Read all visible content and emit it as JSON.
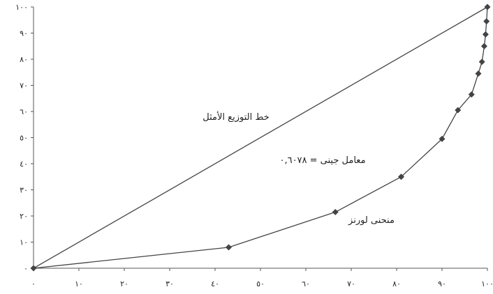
{
  "chart_data": {
    "type": "line",
    "x_ticks": [
      "٠",
      "١٠",
      "٢٠",
      "٣٠",
      "٤٠",
      "٥٠",
      "٦٠",
      "٧٠",
      "٨٠",
      "٩٠",
      "١٠٠"
    ],
    "y_ticks": [
      "٠",
      "١٠",
      "٢٠",
      "٣٠",
      "٤٠",
      "٥٠",
      "٦٠",
      "٧٠",
      "٨٠",
      "٩٠",
      "١٠٠"
    ],
    "xlim": [
      0,
      100
    ],
    "ylim": [
      0,
      100
    ],
    "grid": false,
    "series": [
      {
        "name": "خط التوزيع الأمثل",
        "x": [
          0,
          100
        ],
        "y": [
          0,
          100
        ],
        "markers": false,
        "color": "#444444"
      },
      {
        "name": "منحنى لورنز",
        "x": [
          0,
          43,
          66.5,
          81,
          90,
          93.5,
          96.5,
          98,
          98.8,
          99.3,
          99.6,
          99.8,
          100
        ],
        "y": [
          0,
          8,
          21.5,
          35,
          49.5,
          60.5,
          66.5,
          74.5,
          79,
          85,
          89.5,
          94.5,
          100
        ],
        "markers": true,
        "color": "#444444"
      }
    ],
    "annotations": [
      "خط التوزيع الأمثل",
      "معامل جينى = ٠,٦٠٧٨",
      "منحنى لورنز"
    ]
  }
}
